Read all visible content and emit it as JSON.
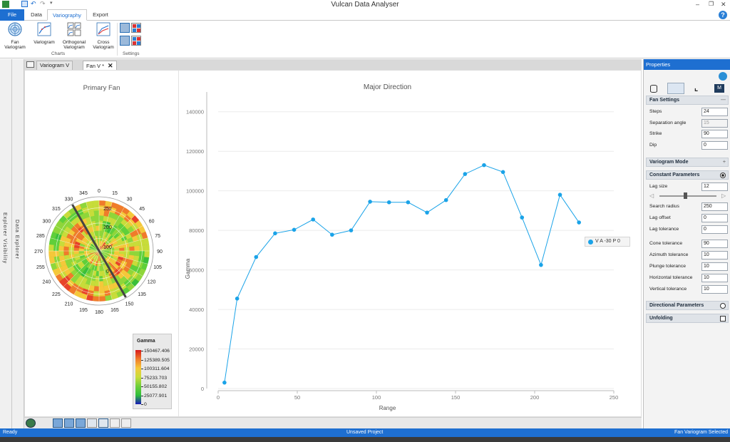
{
  "app": {
    "title": "Vulcan Data Analyser"
  },
  "ribbon_tabs": [
    {
      "label": "File",
      "active": false,
      "file": true
    },
    {
      "label": "Data",
      "active": false
    },
    {
      "label": "Variography",
      "active": true
    },
    {
      "label": "Export",
      "active": false
    }
  ],
  "ribbon_buttons": [
    {
      "label": "Fan\nVariogram",
      "icon": "fan-variogram-icon"
    },
    {
      "label": "Variogram",
      "icon": "variogram-icon"
    },
    {
      "label": "Orthogonal\nVariogram",
      "icon": "orthogonal-variogram-icon"
    },
    {
      "label": "Cross\nVariogram",
      "icon": "cross-variogram-icon"
    }
  ],
  "ribbon_groups": {
    "charts": "Charts",
    "settings": "Settings"
  },
  "side_strips": {
    "explorer_visibility": "Explorer Visibility",
    "data_explorer": "Data Explorer"
  },
  "doc_tabs": [
    {
      "label": "Variogram V",
      "active": false
    },
    {
      "label": "Fan V *",
      "active": true
    }
  ],
  "fan": {
    "title": "Primary Fan",
    "angles": [
      "0",
      "15",
      "30",
      "45",
      "60",
      "75",
      "90",
      "105",
      "120",
      "135",
      "150",
      "165",
      "180",
      "195",
      "210",
      "225",
      "240",
      "255",
      "270",
      "285",
      "300",
      "315",
      "330",
      "345"
    ],
    "radial_labels": [
      "252",
      "200",
      "100",
      "0"
    ],
    "strike_line_deg": 150,
    "legend": {
      "title": "Gamma",
      "values": [
        "150467.406",
        "125389.505",
        "100311.604",
        "75233.703",
        "50155.802",
        "25077.901",
        "0"
      ],
      "colors": [
        "#d7191c",
        "#f07b2a",
        "#f5c83a",
        "#c8dc3a",
        "#6fcf3a",
        "#2fbf3a",
        "#1a1ab8"
      ]
    }
  },
  "chart_data": {
    "type": "line",
    "title": "Major Direction",
    "xlabel": "Range",
    "ylabel": "Gamma",
    "xlim": [
      0,
      250
    ],
    "ylim": [
      0,
      150000
    ],
    "xticks": [
      0,
      50,
      100,
      150,
      200,
      250
    ],
    "yticks": [
      0,
      20000,
      40000,
      60000,
      80000,
      100000,
      120000,
      140000
    ],
    "grid": true,
    "series": [
      {
        "name": "V A -30 P 0",
        "color": "#1aa3e8",
        "x": [
          4,
          12,
          24,
          36,
          48,
          60,
          72,
          84,
          96,
          108,
          120,
          132,
          144,
          156,
          168,
          180,
          192,
          204,
          216,
          228
        ],
        "y": [
          3000,
          45500,
          66500,
          78500,
          80300,
          85500,
          77800,
          80000,
          94500,
          94200,
          94200,
          89000,
          95300,
          108500,
          113000,
          109500,
          86500,
          62500,
          98000,
          84000
        ]
      }
    ],
    "legend_position": "right"
  },
  "properties": {
    "header": "Properties",
    "sections": {
      "fan_settings": "Fan Settings",
      "variogram_mode": "Variogram Mode",
      "constant_parameters": "Constant Parameters",
      "directional_parameters": "Directional Parameters",
      "unfolding": "Unfolding"
    },
    "fan_fields": [
      {
        "label": "Steps",
        "value": "24"
      },
      {
        "label": "Separation angle",
        "value": "15"
      },
      {
        "label": "Strike",
        "value": "90"
      },
      {
        "label": "Dip",
        "value": "0"
      }
    ],
    "constant_fields": [
      {
        "label": "Lag size",
        "value": "12"
      },
      {
        "label": "Search radius",
        "value": "250"
      },
      {
        "label": "Lag offset",
        "value": "0"
      },
      {
        "label": "Lag tolerance",
        "value": "0"
      },
      {
        "label": "Cone tolerance",
        "value": "90"
      },
      {
        "label": "Azimuth tolerance",
        "value": "10"
      },
      {
        "label": "Plunge tolerance",
        "value": "10"
      },
      {
        "label": "Horizontal tolerance",
        "value": "10"
      },
      {
        "label": "Vertical tolerance",
        "value": "10"
      }
    ],
    "lag_slider_fraction": 0.45
  },
  "status": {
    "left": "Ready",
    "center": "Unsaved Project",
    "right": "Fan Variogram Selected"
  }
}
